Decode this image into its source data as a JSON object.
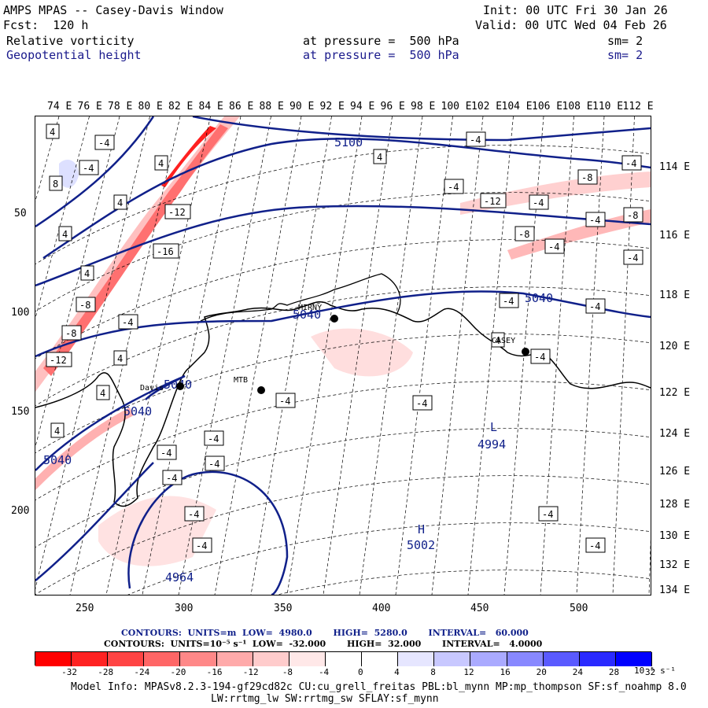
{
  "header": {
    "model_title": "AMPS MPAS -- Casey-Davis Window",
    "init": "Init: 00 UTC Fri 30 Jan 26",
    "fcst": "Fcst:  120 h",
    "valid": "Valid: 00 UTC Wed 04 Feb 26",
    "field1": {
      "name": "Relative vorticity",
      "level": "at pressure =  500 hPa",
      "sm": "sm= 2"
    },
    "field2": {
      "name": "Geopotential height",
      "level": "at pressure =  500 hPa",
      "sm": "sm= 2"
    }
  },
  "top_lon_labels": [
    "74 E",
    "76 E",
    "78 E",
    "80 E",
    "82 E",
    "84 E",
    "86 E",
    "88 E",
    "90 E",
    "92 E",
    "94 E",
    "96 E",
    "98 E",
    "100 E",
    "102 E",
    "104 E",
    "106 E",
    "108 E",
    "110 E",
    "112 E"
  ],
  "right_lon_labels": [
    "114 E",
    "116 E",
    "118 E",
    "120 E",
    "122 E",
    "124 E",
    "126 E",
    "128 E",
    "130 E",
    "132 E",
    "134 E"
  ],
  "left_axis_labels": [
    "50",
    "100",
    "150",
    "200"
  ],
  "bottom_axis_labels": [
    "250",
    "300",
    "350",
    "400",
    "450",
    "500"
  ],
  "stations": [
    {
      "name": "MIRNY"
    },
    {
      "name": "Davis"
    },
    {
      "name": "MTB"
    },
    {
      "name": "CASEY"
    }
  ],
  "height_labels": [
    "5100",
    "5040",
    "5040",
    "5040",
    "5040",
    "5040",
    "4994",
    "5002",
    "4964"
  ],
  "pressure_centers": [
    "L",
    "H"
  ],
  "contour_info": {
    "line1": "CONTOURS:  UNITS=m  LOW=  4980.0       HIGH=  5280.0       INTERVAL=   60.000",
    "line2": "CONTOURS:  UNITS=10⁻⁵ s⁻¹  LOW=  -32.000       HIGH=  32.000       INTERVAL=   4.0000"
  },
  "colorbar": {
    "colors": [
      "#ff0000",
      "#ff2222",
      "#ff4444",
      "#ff6666",
      "#ff8888",
      "#ffaaaa",
      "#ffcccc",
      "#ffe8e8",
      "#ffffff",
      "#ffffff",
      "#e6e6ff",
      "#c8c8ff",
      "#aaaaff",
      "#8888ff",
      "#5a5aff",
      "#2a2aff",
      "#0000ff"
    ],
    "tick_labels": [
      "-32",
      "-28",
      "-24",
      "-20",
      "-16",
      "-12",
      "-8",
      "-4",
      "0",
      "4",
      "8",
      "12",
      "16",
      "20",
      "24",
      "28",
      "32"
    ],
    "units": "10⁻⁵ s⁻¹"
  },
  "footer": {
    "line1": "Model Info: MPASv8.2.3-194-gf29cd82c CU:cu_grell_freitas PBL:bl_mynn MP:mp_thompson SF:sf_noahmp 8.0",
    "line2": "LW:rrtmg_lw SW:rrtmg_sw SFLAY:sf_mynn"
  }
}
